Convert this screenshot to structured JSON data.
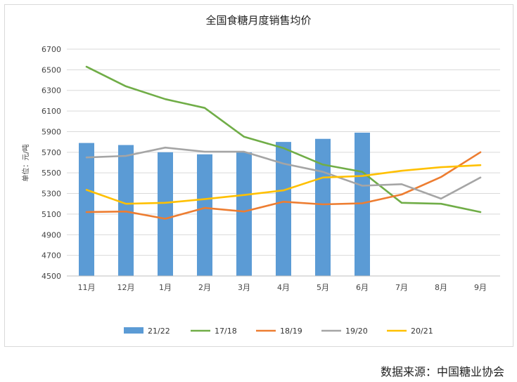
{
  "chart_data": {
    "type": "bar",
    "title": "全国食糖月度销售均价",
    "ylabel": "单位：元/吨",
    "xlabel": "",
    "ylim": [
      4500,
      6700
    ],
    "yticks": [
      4500,
      4700,
      4900,
      5100,
      5300,
      5500,
      5700,
      5900,
      6100,
      6300,
      6500,
      6700
    ],
    "categories": [
      "11月",
      "12月",
      "1月",
      "2月",
      "3月",
      "4月",
      "5月",
      "6月",
      "7月",
      "8月",
      "9月"
    ],
    "grid": true,
    "legend_position": "bottom",
    "bar_series": {
      "name": "21/22",
      "color": "#5b9bd5",
      "values": [
        5790,
        5770,
        5700,
        5680,
        5700,
        5800,
        5830,
        5890,
        null,
        null,
        null
      ]
    },
    "series": [
      {
        "name": "17/18",
        "color": "#70ad47",
        "values": [
          6530,
          6340,
          6215,
          6130,
          5850,
          5740,
          5580,
          5510,
          5210,
          5200,
          5120
        ]
      },
      {
        "name": "18/19",
        "color": "#ed7d31",
        "values": [
          5120,
          5125,
          5055,
          5160,
          5125,
          5220,
          5195,
          5205,
          5290,
          5460,
          5700
        ]
      },
      {
        "name": "19/20",
        "color": "#a5a5a5",
        "values": [
          5650,
          5665,
          5745,
          5705,
          5705,
          5590,
          5510,
          5375,
          5390,
          5250,
          5455
        ]
      },
      {
        "name": "20/21",
        "color": "#ffc000",
        "values": [
          5335,
          5200,
          5210,
          5245,
          5285,
          5330,
          5455,
          5470,
          5520,
          5555,
          5575
        ]
      }
    ],
    "source": "数据来源：中国糖业协会"
  }
}
